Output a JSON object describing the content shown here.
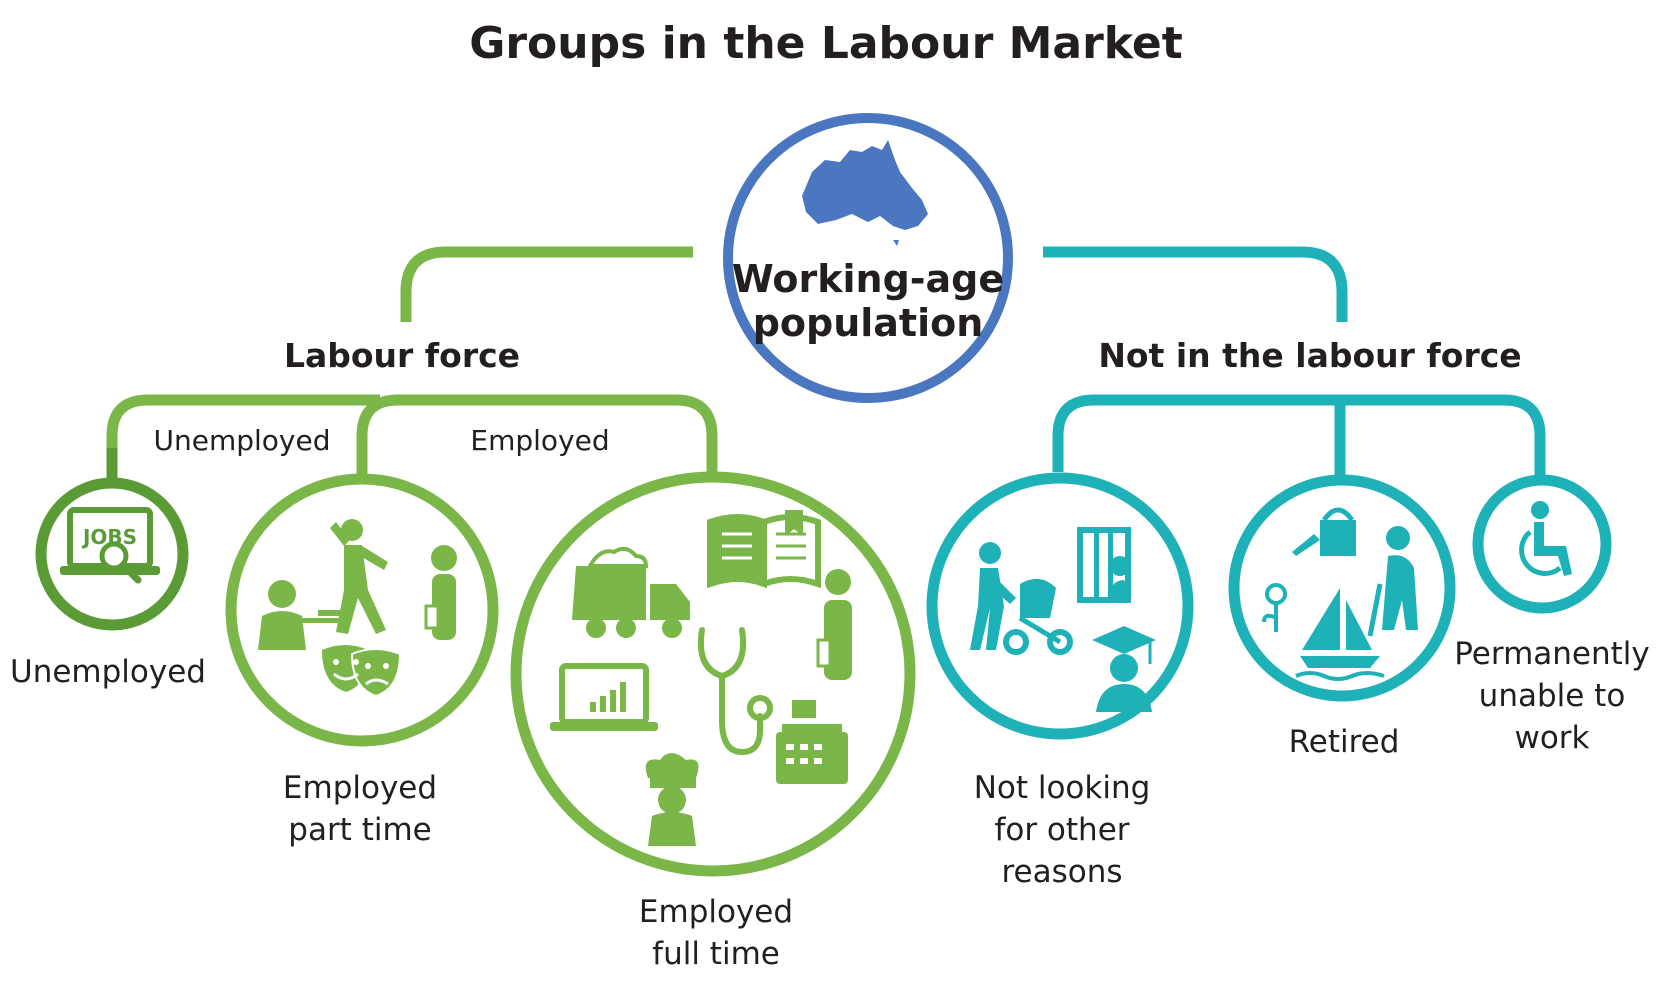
{
  "title": "Groups in the Labour Market",
  "root": {
    "line1": "Working-age",
    "line2": "population",
    "icon": "australia-map-icon"
  },
  "labour_force": {
    "label": "Labour force",
    "branch_unemployed": "Unemployed",
    "branch_employed": "Employed",
    "unemployed": {
      "label": "Unemployed",
      "icon": "jobs-search-laptop-icon"
    },
    "part_time": {
      "line1": "Employed",
      "line2": "part time",
      "icons": [
        "waiter-icon",
        "dancer-icon",
        "worker-icon",
        "theatre-masks-icon"
      ]
    },
    "full_time": {
      "line1": "Employed",
      "line2": "full time",
      "icons": [
        "dump-truck-icon",
        "open-book-icon",
        "person-icon",
        "laptop-chart-icon",
        "stethoscope-icon",
        "cash-register-icon",
        "chef-icon"
      ]
    }
  },
  "not_in_labour_force": {
    "label": "Not in the labour force",
    "not_looking": {
      "line1": "Not looking",
      "line2": "for other",
      "line3": "reasons",
      "icons": [
        "parent-stroller-icon",
        "prisoner-icon",
        "graduate-icon"
      ]
    },
    "retired": {
      "label": "Retired",
      "icons": [
        "watering-can-icon",
        "flower-icon",
        "sailboat-icon",
        "elderly-person-icon"
      ]
    },
    "unable": {
      "line1": "Permanently",
      "line2": "unable to",
      "line3": "work",
      "icon": "wheelchair-icon"
    }
  },
  "colors": {
    "labour": "#7ab648",
    "labour_dark": "#5a9b35",
    "not_labour": "#1fb1b8",
    "root": "#4a77c0",
    "text": "#231f20"
  }
}
